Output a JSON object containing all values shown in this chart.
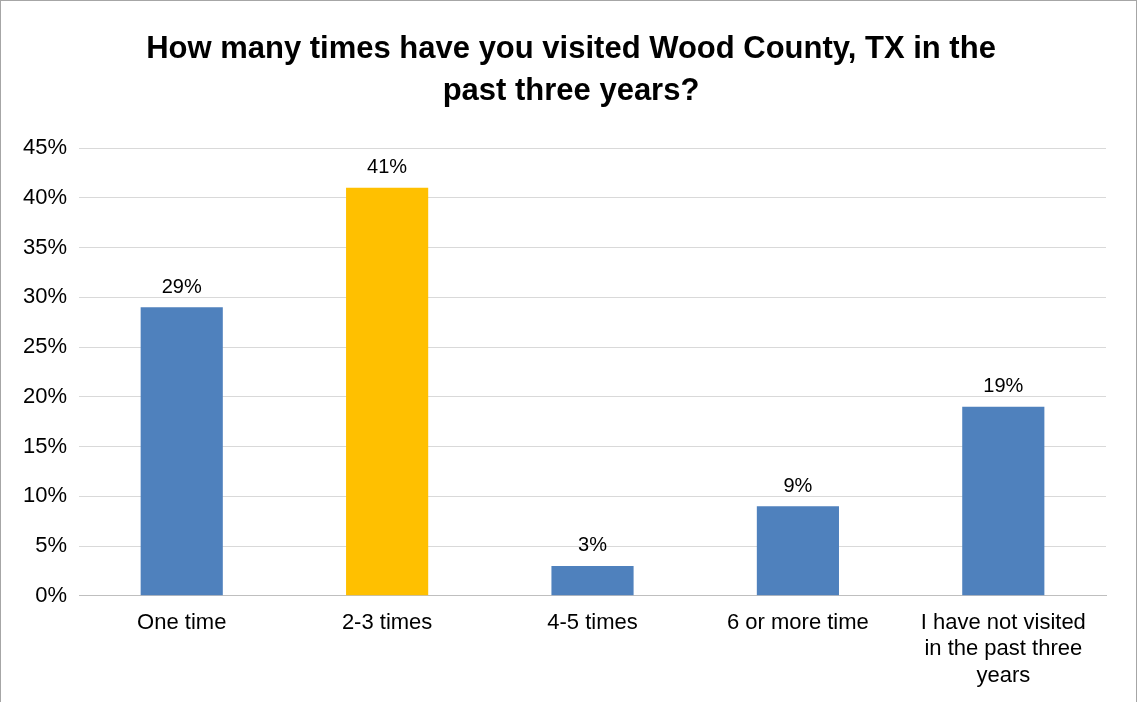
{
  "chart_data": {
    "type": "bar",
    "title": "How many times have you visited Wood County, TX in the past three years?",
    "categories": [
      "One time",
      "2-3 times",
      "4-5 times",
      "6 or more time",
      "I have not visited in the past three years"
    ],
    "values": [
      29,
      41,
      3,
      9,
      19
    ],
    "colors": [
      "#4f81bd",
      "#ffc000",
      "#4f81bd",
      "#4f81bd",
      "#4f81bd"
    ],
    "value_labels": [
      "29%",
      "41%",
      "3%",
      "9%",
      "19%"
    ],
    "ylim": [
      0,
      45
    ],
    "yticks": [
      {
        "value": 0,
        "label": "0%"
      },
      {
        "value": 5,
        "label": "5%"
      },
      {
        "value": 10,
        "label": "10%"
      },
      {
        "value": 15,
        "label": "15%"
      },
      {
        "value": 20,
        "label": "20%"
      },
      {
        "value": 25,
        "label": "25%"
      },
      {
        "value": 30,
        "label": "30%"
      },
      {
        "value": 35,
        "label": "35%"
      },
      {
        "value": 40,
        "label": "40%"
      },
      {
        "value": 45,
        "label": "45%"
      }
    ],
    "grid": "y",
    "legend": false
  }
}
